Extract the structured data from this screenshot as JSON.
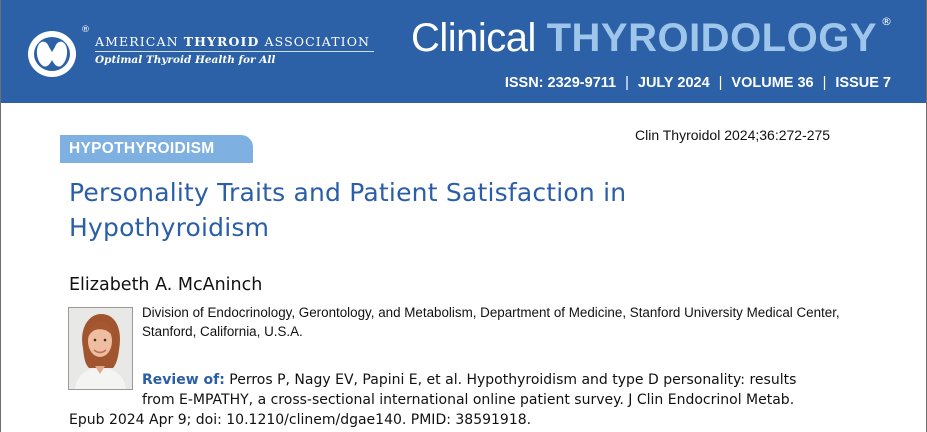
{
  "header": {
    "association_name_part1": "AMERICAN",
    "association_name_part2": "THYROID",
    "association_name_part3": "ASSOCIATION",
    "association_tagline": "Optimal Thyroid Health for All",
    "registered_mark": "®",
    "journal_title_part1": "Clinical",
    "journal_title_part2": "THYROIDOLOGY",
    "journal_registered_mark": "®",
    "issn": "ISSN: 2329-9711",
    "date": "JULY 2024",
    "volume": "VOLUME 36",
    "issue": "ISSUE 7",
    "separator": "|",
    "banner_color": "#2c61a8",
    "accent_color": "#9ec5ea"
  },
  "article": {
    "category": "HYPOTHYROIDISM",
    "category_color": "#7fb0e2",
    "citation": "Clin Thyroidol 2024;36:272-275",
    "title_line1": "Personality Traits and Patient Satisfaction in",
    "title_line2": "Hypothyroidism",
    "title_color": "#2a5ea6",
    "author": "Elizabeth A. McAninch",
    "author_photo": "author-photo",
    "affiliation_line1": "Division of Endocrinology, Gerontology, and Metabolism, Department of Medicine, Stanford University Medical Center,",
    "affiliation_line2": "Stanford, California, U.S.A.",
    "review_label": "Review of:",
    "review_text_line1": "Perros P, Nagy EV, Papini E, et al. Hypothyroidism and type D personality: results",
    "review_text_line2": "from E-MPATHY, a cross-sectional international online patient survey. J Clin Endocrinol Metab.",
    "review_text_line3": "Epub 2024 Apr 9; doi: 10.1210/clinem/dgae140. PMID: 38591918."
  }
}
